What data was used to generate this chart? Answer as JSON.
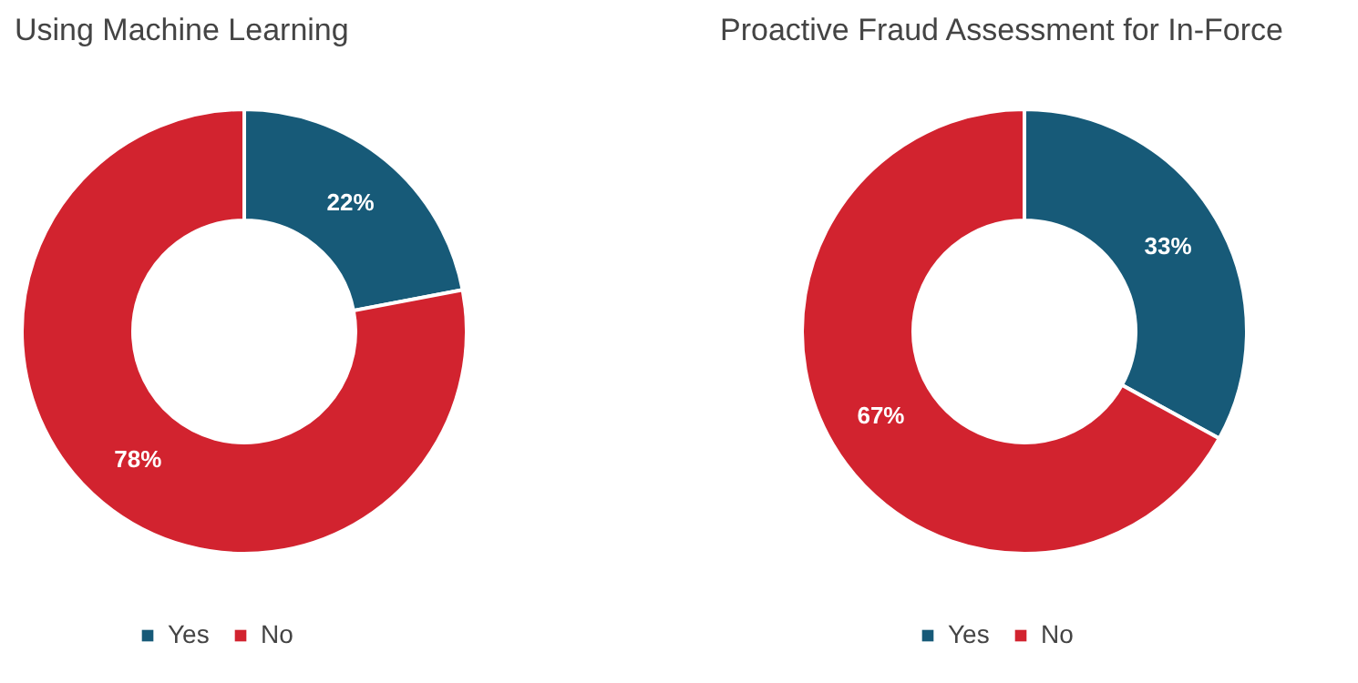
{
  "chart_data": [
    {
      "type": "donut",
      "title": "Using Machine Learning",
      "categories": [
        "Yes",
        "No"
      ],
      "values": [
        22,
        78
      ],
      "colors": [
        "#175a78",
        "#d2232f"
      ],
      "value_labels": [
        "22%",
        "78%"
      ],
      "legend": "bottom"
    },
    {
      "type": "donut",
      "title": "Proactive Fraud Assessment for In-Force",
      "categories": [
        "Yes",
        "No"
      ],
      "values": [
        33,
        67
      ],
      "colors": [
        "#175a78",
        "#d2232f"
      ],
      "value_labels": [
        "33%",
        "67%"
      ],
      "legend": "bottom"
    }
  ]
}
